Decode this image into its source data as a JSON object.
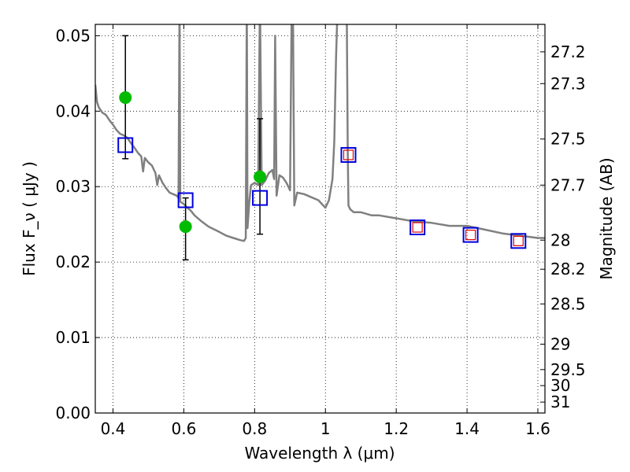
{
  "chart_data": {
    "type": "line",
    "title": "",
    "xlabel": "Wavelength  λ (μm)",
    "ylabel": "Flux  F_ν  ( μJy )",
    "ylabel_right": "Magnitude (AB)",
    "xlim": [
      0.35,
      1.62
    ],
    "ylim": [
      0.0,
      0.0515
    ],
    "grid": true,
    "x_ticks": [
      0.4,
      0.6,
      0.8,
      1.0,
      1.2,
      1.4,
      1.6
    ],
    "x_tick_labels": [
      "0.4",
      "0.6",
      "0.8",
      "1",
      "1.2",
      "1.4",
      "1.6"
    ],
    "y_ticks": [
      0.0,
      0.01,
      0.02,
      0.03,
      0.04,
      0.05
    ],
    "y_tick_labels": [
      "0.00",
      "0.01",
      "0.02",
      "0.03",
      "0.04",
      "0.05"
    ],
    "right_ticks": [
      {
        "mag": 27.2,
        "label": "27.2"
      },
      {
        "mag": 27.3,
        "label": "27.3"
      },
      {
        "mag": 27.5,
        "label": "27.5"
      },
      {
        "mag": 27.7,
        "label": "27.7"
      },
      {
        "mag": 28,
        "label": "28"
      },
      {
        "mag": 28.2,
        "label": "28.2"
      },
      {
        "mag": 28.5,
        "label": "28.5"
      },
      {
        "mag": 29,
        "label": "29"
      },
      {
        "mag": 29.5,
        "label": "29.5"
      },
      {
        "mag": 30,
        "label": "30"
      },
      {
        "mag": 31,
        "label": "31"
      }
    ],
    "series": [
      {
        "style": "sed-model-line",
        "color": "#808080",
        "x": [
          0.35,
          0.355,
          0.36,
          0.37,
          0.38,
          0.39,
          0.4,
          0.41,
          0.42,
          0.43,
          0.44,
          0.45,
          0.46,
          0.47,
          0.48,
          0.485,
          0.49,
          0.5,
          0.51,
          0.52,
          0.525,
          0.53,
          0.54,
          0.55,
          0.56,
          0.57,
          0.58,
          0.585,
          0.588,
          0.59,
          0.6,
          0.61,
          0.62,
          0.63,
          0.65,
          0.67,
          0.7,
          0.72,
          0.74,
          0.76,
          0.77,
          0.775,
          0.778,
          0.78,
          0.785,
          0.79,
          0.8,
          0.81,
          0.815,
          0.82,
          0.83,
          0.84,
          0.85,
          0.855,
          0.858,
          0.862,
          0.87,
          0.88,
          0.89,
          0.9,
          0.905,
          0.908,
          0.912,
          0.92,
          0.94,
          0.96,
          0.98,
          1.0,
          1.01,
          1.02,
          1.025,
          1.03,
          1.035,
          1.04,
          1.05,
          1.06,
          1.063,
          1.065,
          1.07,
          1.08,
          1.1,
          1.13,
          1.15,
          1.2,
          1.25,
          1.3,
          1.35,
          1.4,
          1.45,
          1.5,
          1.55,
          1.6,
          1.62
        ],
        "y": [
          0.0435,
          0.0412,
          0.0405,
          0.0398,
          0.0395,
          0.0388,
          0.0382,
          0.0375,
          0.037,
          0.0368,
          0.0365,
          0.0358,
          0.0352,
          0.0345,
          0.034,
          0.032,
          0.0338,
          0.0332,
          0.0328,
          0.0318,
          0.0302,
          0.0315,
          0.0305,
          0.0298,
          0.0292,
          0.029,
          0.0288,
          0.0285,
          0.055,
          0.028,
          0.0277,
          0.0272,
          0.0268,
          0.0262,
          0.0254,
          0.0247,
          0.024,
          0.0235,
          0.0232,
          0.0229,
          0.0228,
          0.0232,
          0.055,
          0.0245,
          0.028,
          0.0302,
          0.0305,
          0.0302,
          0.055,
          0.0302,
          0.0308,
          0.0318,
          0.0322,
          0.031,
          0.05,
          0.0288,
          0.0315,
          0.0312,
          0.0305,
          0.0295,
          0.055,
          0.055,
          0.0275,
          0.0292,
          0.029,
          0.0286,
          0.0282,
          0.0272,
          0.0282,
          0.031,
          0.036,
          0.047,
          0.055,
          0.055,
          0.055,
          0.055,
          0.0345,
          0.0275,
          0.027,
          0.0266,
          0.0266,
          0.0262,
          0.0262,
          0.0258,
          0.0254,
          0.0252,
          0.0248,
          0.0248,
          0.0243,
          0.0238,
          0.0235,
          0.0232,
          0.0232
        ]
      },
      {
        "style": "green-circles-with-errorbars",
        "color": "#00bb00",
        "x": [
          0.435,
          0.605,
          0.815
        ],
        "y": [
          0.0418,
          0.0247,
          0.0313
        ],
        "yerr_low": [
          0.0337,
          0.0203,
          0.0237
        ],
        "yerr_high": [
          0.05,
          0.0285,
          0.039
        ]
      },
      {
        "style": "blue-open-squares",
        "color": "#0000dd",
        "x": [
          0.435,
          0.605,
          0.815,
          1.065,
          1.26,
          1.41,
          1.545
        ],
        "y": [
          0.0355,
          0.0282,
          0.0285,
          0.0342,
          0.0246,
          0.0236,
          0.0228
        ]
      },
      {
        "style": "red-open-squares",
        "color": "#dd0000",
        "x": [
          1.065,
          1.26,
          1.41,
          1.545
        ],
        "y": [
          0.0342,
          0.0246,
          0.0236,
          0.0228
        ]
      }
    ]
  }
}
